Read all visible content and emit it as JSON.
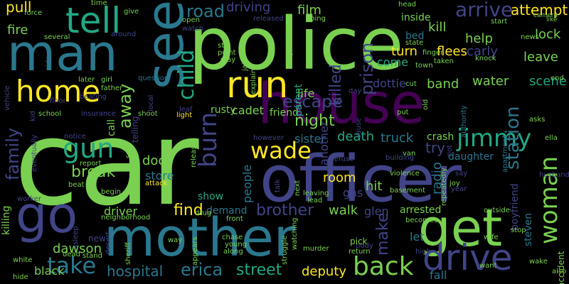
{
  "words": [
    {
      "text": "car",
      "color": "#7ad151"
    },
    {
      "text": "police",
      "color": "#7ad151"
    },
    {
      "text": "officer",
      "color": "#414487"
    },
    {
      "text": "house",
      "color": "#440154"
    },
    {
      "text": "mother",
      "color": "#2a788e"
    },
    {
      "text": "man",
      "color": "#2a788e"
    },
    {
      "text": "see",
      "color": "#2a788e"
    },
    {
      "text": "get",
      "color": "#7ad151"
    },
    {
      "text": "go",
      "color": "#414487"
    },
    {
      "text": "tell",
      "color": "#22a884"
    },
    {
      "text": "run",
      "color": "#fde725"
    },
    {
      "text": "home",
      "color": "#fde725"
    },
    {
      "text": "drive",
      "color": "#414487"
    },
    {
      "text": "back",
      "color": "#7ad151"
    },
    {
      "text": "woman",
      "color": "#7ad151"
    },
    {
      "text": "burn",
      "color": "#414487"
    },
    {
      "text": "child",
      "color": "#22a884"
    },
    {
      "text": "gun",
      "color": "#22a884"
    },
    {
      "text": "take",
      "color": "#2a788e"
    },
    {
      "text": "wade",
      "color": "#fde725"
    },
    {
      "text": "jimmy",
      "color": "#22a884"
    },
    {
      "text": "family",
      "color": "#414487"
    },
    {
      "text": "escape",
      "color": "#414487"
    },
    {
      "text": "station",
      "color": "#2a788e"
    },
    {
      "text": "arrive",
      "color": "#414487"
    },
    {
      "text": "away",
      "color": "#7ad151"
    },
    {
      "text": "erica",
      "color": "#2a788e"
    },
    {
      "text": "street",
      "color": "#22a884"
    },
    {
      "text": "prison",
      "color": "#414487"
    },
    {
      "text": "brother",
      "color": "#414487"
    },
    {
      "text": "break",
      "color": "#7ad151"
    },
    {
      "text": "find",
      "color": "#fde725"
    },
    {
      "text": "hospital",
      "color": "#2a788e"
    },
    {
      "text": "night",
      "color": "#7ad151"
    },
    {
      "text": "try",
      "color": "#414487"
    },
    {
      "text": "make",
      "color": "#414487"
    },
    {
      "text": "road",
      "color": "#2a788e"
    },
    {
      "text": "pull",
      "color": "#fde725"
    },
    {
      "text": "fire",
      "color": "#7ad151"
    },
    {
      "text": "driving",
      "color": "#414487"
    },
    {
      "text": "film",
      "color": "#7ad151"
    },
    {
      "text": "killed",
      "color": "#414487"
    },
    {
      "text": "kill",
      "color": "#7ad151"
    },
    {
      "text": "attempt",
      "color": "#fde725"
    },
    {
      "text": "lock",
      "color": "#7ad151"
    },
    {
      "text": "help",
      "color": "#7ad151"
    },
    {
      "text": "leave",
      "color": "#7ad151"
    },
    {
      "text": "carly",
      "color": "#414487"
    },
    {
      "text": "turn",
      "color": "#fde725"
    },
    {
      "text": "flees",
      "color": "#fde725"
    },
    {
      "text": "come",
      "color": "#22a884"
    },
    {
      "text": "water",
      "color": "#7ad151"
    },
    {
      "text": "band",
      "color": "#7ad151"
    },
    {
      "text": "scene",
      "color": "#22a884"
    },
    {
      "text": "life",
      "color": "#7ad151"
    },
    {
      "text": "dottie",
      "color": "#414487"
    },
    {
      "text": "cadet",
      "color": "#7ad151"
    },
    {
      "text": "friend",
      "color": "#7ad151"
    },
    {
      "text": "death",
      "color": "#22a884"
    },
    {
      "text": "truck",
      "color": "#2a788e"
    },
    {
      "text": "sister",
      "color": "#2a788e"
    },
    {
      "text": "door",
      "color": "#7ad151"
    },
    {
      "text": "store",
      "color": "#2a788e"
    },
    {
      "text": "driver",
      "color": "#7ad151"
    },
    {
      "text": "room",
      "color": "#fde725"
    },
    {
      "text": "hit",
      "color": "#7ad151"
    },
    {
      "text": "gas",
      "color": "#414487"
    },
    {
      "text": "walk",
      "color": "#7ad151"
    },
    {
      "text": "glen",
      "color": "#414487"
    },
    {
      "text": "arrested",
      "color": "#7ad151"
    },
    {
      "text": "let",
      "color": "#2a788e"
    },
    {
      "text": "fall",
      "color": "#2a788e"
    },
    {
      "text": "deputy",
      "color": "#fde725"
    },
    {
      "text": "dawson",
      "color": "#7ad151"
    },
    {
      "text": "black",
      "color": "#7ad151"
    },
    {
      "text": "people",
      "color": "#2a788e"
    },
    {
      "text": "crash",
      "color": "#7ad151"
    },
    {
      "text": "radio",
      "color": "#2a788e"
    },
    {
      "text": "daughter",
      "color": "#2a788e"
    },
    {
      "text": "steven",
      "color": "#2a788e"
    },
    {
      "text": "killing",
      "color": "#7ad151"
    },
    {
      "text": "demand",
      "color": "#2a788e"
    },
    {
      "text": "show",
      "color": "#22a884"
    },
    {
      "text": "rusty",
      "color": "#7ad151"
    },
    {
      "text": "another",
      "color": "#414487"
    },
    {
      "text": "parent",
      "color": "#22a884"
    },
    {
      "text": "bed",
      "color": "#2a788e"
    },
    {
      "text": "inside",
      "color": "#7ad151"
    },
    {
      "text": "boyfriend",
      "color": "#414487"
    },
    {
      "text": "accident",
      "color": "#7ad151"
    },
    {
      "text": "telling",
      "color": "#414487"
    },
    {
      "text": "head",
      "color": "#7ad151"
    },
    {
      "text": "time",
      "color": "#7ad151"
    },
    {
      "text": "give",
      "color": "#7ad151"
    },
    {
      "text": "camera",
      "color": "#7ad151"
    },
    {
      "text": "like",
      "color": "#7ad151"
    },
    {
      "text": "several",
      "color": "#7ad151"
    },
    {
      "text": "force",
      "color": "#7ad151"
    },
    {
      "text": "new",
      "color": "#414487"
    },
    {
      "text": "white",
      "color": "#7ad151"
    },
    {
      "text": "attack",
      "color": "#fde725"
    },
    {
      "text": "beat",
      "color": "#7ad151"
    },
    {
      "text": "report",
      "color": "#7ad151"
    },
    {
      "text": "notice",
      "color": "#414487"
    },
    {
      "text": "school",
      "color": "#7ad151"
    },
    {
      "text": "insurance",
      "color": "#414487"
    },
    {
      "text": "shoot",
      "color": "#7ad151"
    },
    {
      "text": "light",
      "color": "#fde725"
    },
    {
      "text": "question",
      "color": "#2a788e"
    },
    {
      "text": "later",
      "color": "#7ad151"
    },
    {
      "text": "girl",
      "color": "#7ad151"
    },
    {
      "text": "father",
      "color": "#7ad151"
    },
    {
      "text": "floor",
      "color": "#414487"
    },
    {
      "text": "beating",
      "color": "#414487"
    },
    {
      "text": "side",
      "color": "#2a788e"
    },
    {
      "text": "around",
      "color": "#414487"
    },
    {
      "text": "watch",
      "color": "#414487"
    },
    {
      "text": "open",
      "color": "#7ad151"
    },
    {
      "text": "still",
      "color": "#7ad151"
    },
    {
      "text": "point",
      "color": "#7ad151"
    },
    {
      "text": "stay",
      "color": "#7ad151"
    },
    {
      "text": "jail",
      "color": "#7ad151"
    },
    {
      "text": "explains",
      "color": "#7ad151"
    },
    {
      "text": "keep",
      "color": "#7ad151"
    },
    {
      "text": "going",
      "color": "#7ad151"
    },
    {
      "text": "released",
      "color": "#414487"
    },
    {
      "text": "state",
      "color": "#7ad151"
    },
    {
      "text": "finger",
      "color": "#7ad151"
    },
    {
      "text": "taken",
      "color": "#7ad151"
    },
    {
      "text": "town",
      "color": "#7ad151"
    },
    {
      "text": "start",
      "color": "#7ad151"
    },
    {
      "text": "news",
      "color": "#7ad151"
    },
    {
      "text": "knock",
      "color": "#7ad151"
    },
    {
      "text": "end",
      "color": "#7ad151"
    },
    {
      "text": "cut",
      "color": "#7ad151"
    },
    {
      "text": "day",
      "color": "#414487"
    },
    {
      "text": "cause",
      "color": "#414487"
    },
    {
      "text": "put",
      "color": "#7ad151"
    },
    {
      "text": "old",
      "color": "#7ad151"
    },
    {
      "text": "authority",
      "color": "#2a788e"
    },
    {
      "text": "apartment",
      "color": "#2a788e"
    },
    {
      "text": "asks",
      "color": "#7ad151"
    },
    {
      "text": "ella",
      "color": "#7ad151"
    },
    {
      "text": "husband",
      "color": "#414487"
    },
    {
      "text": "say",
      "color": "#414487"
    },
    {
      "text": "joy",
      "color": "#7ad151"
    },
    {
      "text": "year",
      "color": "#414487"
    },
    {
      "text": "outside",
      "color": "#7ad151"
    },
    {
      "text": "wife",
      "color": "#7ad151"
    },
    {
      "text": "stop",
      "color": "#7ad151"
    },
    {
      "text": "wake",
      "color": "#7ad151"
    },
    {
      "text": "also",
      "color": "#7ad151"
    },
    {
      "text": "want",
      "color": "#7ad151"
    },
    {
      "text": "high",
      "color": "#414487"
    },
    {
      "text": "return",
      "color": "#7ad151"
    },
    {
      "text": "body",
      "color": "#414487"
    },
    {
      "text": "pick",
      "color": "#7ad151"
    },
    {
      "text": "becomes",
      "color": "#7ad151"
    },
    {
      "text": "murder",
      "color": "#7ad151"
    },
    {
      "text": "watching",
      "color": "#7ad151"
    },
    {
      "text": "young",
      "color": "#7ad151"
    },
    {
      "text": "along",
      "color": "#7ad151"
    },
    {
      "text": "chase",
      "color": "#7ad151"
    },
    {
      "text": "struggle",
      "color": "#7ad151"
    },
    {
      "text": "front",
      "color": "#7ad151"
    },
    {
      "text": "appears",
      "color": "#7ad151"
    },
    {
      "text": "way",
      "color": "#7ad151"
    },
    {
      "text": "sheriff",
      "color": "#7ad151"
    },
    {
      "text": "drug",
      "color": "#7ad151"
    },
    {
      "text": "neighborhood",
      "color": "#7ad151"
    },
    {
      "text": "begin",
      "color": "#7ad151"
    },
    {
      "text": "desert",
      "color": "#414487"
    },
    {
      "text": "stand",
      "color": "#7ad151"
    },
    {
      "text": "dead",
      "color": "#7ad151"
    },
    {
      "text": "hide",
      "color": "#7ad151"
    },
    {
      "text": "asleep",
      "color": "#414487"
    },
    {
      "text": "worker",
      "color": "#414487"
    },
    {
      "text": "eventually",
      "color": "#414487"
    },
    {
      "text": "vehicle",
      "color": "#414487"
    },
    {
      "text": "kid",
      "color": "#414487"
    },
    {
      "text": "call",
      "color": "#7ad151"
    },
    {
      "text": "set",
      "color": "#7ad151"
    },
    {
      "text": "release",
      "color": "#7ad151"
    },
    {
      "text": "leaf",
      "color": "#414487"
    },
    {
      "text": "however",
      "color": "#414487"
    },
    {
      "text": "refuse",
      "color": "#414487"
    },
    {
      "text": "van",
      "color": "#7ad151"
    },
    {
      "text": "building",
      "color": "#414487"
    },
    {
      "text": "violence",
      "color": "#7ad151"
    },
    {
      "text": "talk",
      "color": "#414487"
    },
    {
      "text": "next",
      "color": "#7ad151"
    },
    {
      "text": "leaving",
      "color": "#7ad151"
    },
    {
      "text": "lead",
      "color": "#7ad151"
    },
    {
      "text": "basement",
      "color": "#7ad151"
    },
    {
      "text": "riot",
      "color": "#414487"
    },
    {
      "text": "repeatedly",
      "color": "#7ad151"
    },
    {
      "text": "local",
      "color": "#414487"
    }
  ]
}
